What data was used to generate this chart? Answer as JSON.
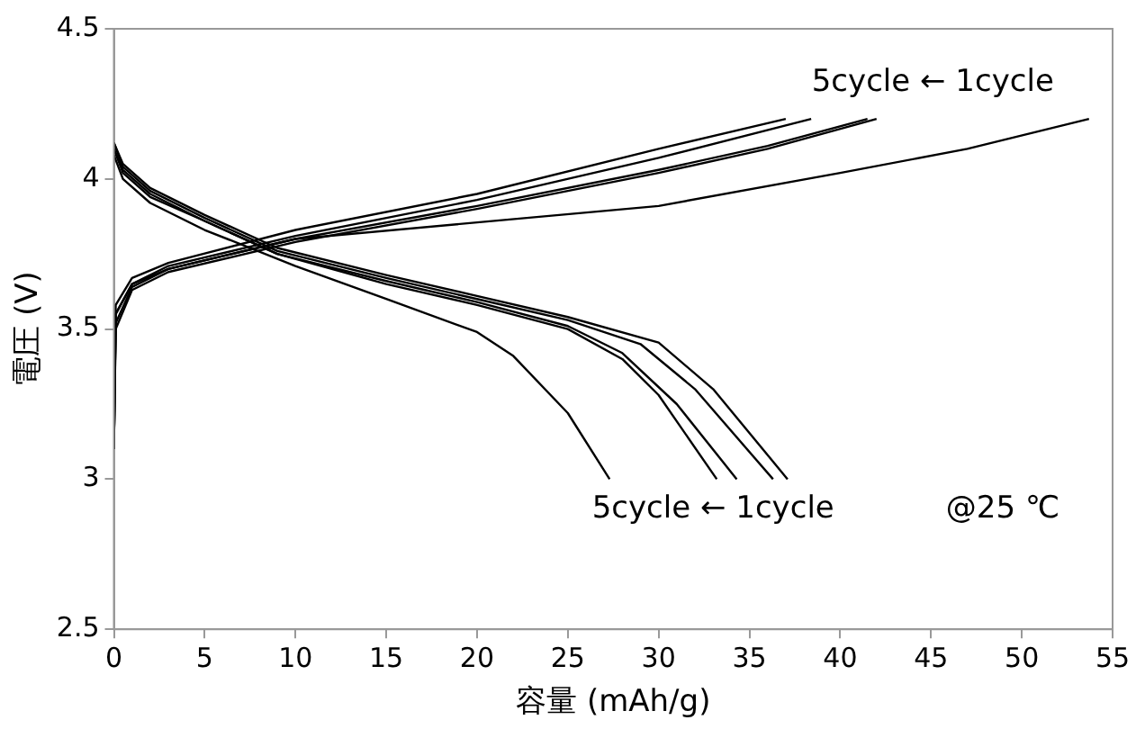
{
  "chart_data": {
    "type": "line",
    "xlabel": "容量 (mAh/g)",
    "ylabel": "電圧 (V)",
    "xlim": [
      0,
      55
    ],
    "xticks": [
      0,
      5,
      10,
      15,
      20,
      25,
      30,
      35,
      40,
      45,
      50,
      55
    ],
    "ylim": [
      2.5,
      4.5
    ],
    "yticks": [
      2.5,
      3,
      3.5,
      4,
      4.5
    ],
    "grid": false,
    "legend": false,
    "marker": "none",
    "line_style": "solid",
    "annotations": [
      "5cycle ← 1cycle",
      "5cycle ← 1cycle",
      "@25 ℃"
    ],
    "series": [
      {
        "color": "#000000",
        "x": [
          0,
          0.1,
          1,
          3,
          10,
          20,
          30,
          40,
          47,
          53.7
        ],
        "values": [
          3.1,
          3.55,
          3.65,
          3.7,
          3.8,
          3.855,
          3.91,
          4.02,
          4.1,
          4.2
        ]
      },
      {
        "color": "#000000",
        "x": [
          0,
          0.1,
          1,
          3,
          10,
          20,
          30,
          36,
          42
        ],
        "values": [
          3.1,
          3.5,
          3.63,
          3.69,
          3.79,
          3.9,
          4.02,
          4.1,
          4.2
        ]
      },
      {
        "color": "#000000",
        "x": [
          0,
          0.1,
          1,
          3,
          10,
          20,
          30,
          36,
          41.5
        ],
        "values": [
          3.1,
          3.52,
          3.64,
          3.7,
          3.8,
          3.91,
          4.03,
          4.11,
          4.2
        ]
      },
      {
        "color": "#000000",
        "x": [
          0,
          0.1,
          1,
          3,
          10,
          20,
          30,
          38.4
        ],
        "values": [
          3.1,
          3.55,
          3.65,
          3.71,
          3.81,
          3.93,
          4.07,
          4.2
        ]
      },
      {
        "color": "#000000",
        "x": [
          0,
          0.1,
          1,
          3,
          10,
          20,
          30,
          37
        ],
        "values": [
          3.1,
          3.58,
          3.67,
          3.72,
          3.83,
          3.95,
          4.1,
          4.2
        ]
      },
      {
        "color": "#000000",
        "x": [
          0,
          0.5,
          2,
          5,
          9,
          15,
          20,
          25,
          30,
          33,
          37.1
        ],
        "values": [
          4.12,
          4.05,
          3.97,
          3.88,
          3.77,
          3.68,
          3.61,
          3.54,
          3.455,
          3.3,
          3.0
        ]
      },
      {
        "color": "#000000",
        "x": [
          0,
          0.5,
          2,
          5,
          9,
          15,
          20,
          25,
          29,
          32,
          36.3
        ],
        "values": [
          4.12,
          4.04,
          3.96,
          3.87,
          3.76,
          3.67,
          3.6,
          3.53,
          3.45,
          3.3,
          3.0
        ]
      },
      {
        "color": "#000000",
        "x": [
          0,
          0.5,
          2,
          5,
          9,
          15,
          20,
          25,
          28,
          31,
          34.3
        ],
        "values": [
          4.1,
          4.03,
          3.95,
          3.86,
          3.75,
          3.66,
          3.59,
          3.51,
          3.42,
          3.25,
          3.0
        ]
      },
      {
        "color": "#000000",
        "x": [
          0,
          0.5,
          2,
          5,
          9,
          15,
          20,
          25,
          28,
          30,
          33.2
        ],
        "values": [
          4.1,
          4.02,
          3.94,
          3.86,
          3.75,
          3.65,
          3.58,
          3.5,
          3.4,
          3.28,
          3.0
        ]
      },
      {
        "color": "#000000",
        "x": [
          0,
          0.5,
          2,
          5,
          10,
          15,
          20,
          22,
          25,
          27.3
        ],
        "values": [
          4.08,
          4.0,
          3.92,
          3.83,
          3.71,
          3.6,
          3.49,
          3.41,
          3.22,
          3.0
        ]
      }
    ]
  }
}
